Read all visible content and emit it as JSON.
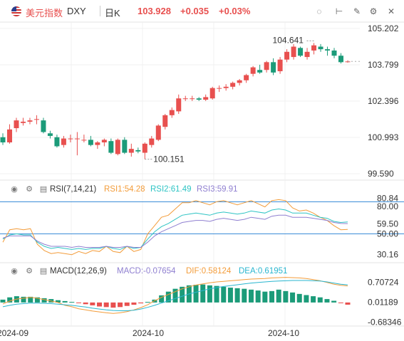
{
  "header": {
    "name": "美元指数",
    "code": "DXY",
    "period": "日K",
    "last": "103.928",
    "change": "+0.035",
    "change_pct": "+0.03%",
    "flag_icon": "us-flag-icon",
    "tools": [
      "eye-off-icon",
      "price-line-icon",
      "draw-icon",
      "settings-icon",
      "expand-icon",
      "close-icon"
    ]
  },
  "colors": {
    "up": "#e8504f",
    "down": "#1b9b79",
    "rsi1": "#f39c3a",
    "rsi2": "#2ec4c4",
    "rsi3": "#8f7fd0",
    "macd": "#8f7fd0",
    "dif": "#f39c3a",
    "dea": "#29b6cf",
    "level": "#3c8dd8"
  },
  "chart_data": [
    {
      "type": "candlestick",
      "price_axis": [
        "105.202",
        "103.799",
        "102.396",
        "100.993",
        "99.590"
      ],
      "ylim": [
        99.59,
        105.202
      ],
      "high_label": "104.641",
      "low_label": "100.151",
      "candles": [
        [
          101.0,
          101.15,
          100.7,
          100.8
        ],
        [
          100.8,
          101.5,
          100.75,
          101.3
        ],
        [
          101.35,
          101.75,
          101.2,
          101.65
        ],
        [
          101.55,
          101.75,
          101.45,
          101.6
        ],
        [
          101.6,
          101.75,
          101.5,
          101.65
        ],
        [
          101.7,
          101.85,
          101.5,
          101.7
        ],
        [
          101.65,
          101.75,
          101.15,
          101.2
        ],
        [
          101.15,
          101.25,
          100.95,
          101.05
        ],
        [
          101.0,
          101.1,
          100.6,
          100.65
        ],
        [
          100.7,
          101.05,
          100.6,
          100.95
        ],
        [
          100.95,
          101.1,
          100.8,
          100.95
        ],
        [
          100.95,
          101.2,
          100.3,
          100.95
        ],
        [
          100.9,
          101.1,
          100.8,
          100.9
        ],
        [
          100.9,
          101.05,
          100.65,
          100.7
        ],
        [
          100.7,
          100.85,
          100.55,
          100.8
        ],
        [
          100.8,
          100.95,
          100.65,
          100.9
        ],
        [
          100.85,
          100.95,
          100.35,
          100.4
        ],
        [
          100.35,
          100.95,
          100.3,
          100.9
        ],
        [
          100.9,
          101.0,
          100.35,
          100.4
        ],
        [
          100.4,
          100.75,
          100.25,
          100.55
        ],
        [
          100.5,
          100.6,
          100.38,
          100.45
        ],
        [
          100.4,
          100.8,
          100.15,
          100.75
        ],
        [
          100.7,
          101.05,
          100.6,
          100.95
        ],
        [
          100.9,
          101.5,
          100.85,
          101.45
        ],
        [
          101.4,
          101.9,
          101.3,
          101.85
        ],
        [
          101.85,
          102.15,
          101.75,
          102.05
        ],
        [
          102.0,
          102.65,
          101.9,
          102.5
        ],
        [
          102.5,
          102.6,
          102.4,
          102.5
        ],
        [
          102.5,
          102.6,
          102.4,
          102.5
        ],
        [
          102.5,
          102.55,
          102.4,
          102.45
        ],
        [
          102.45,
          102.65,
          102.4,
          102.55
        ],
        [
          102.5,
          102.95,
          102.45,
          102.9
        ],
        [
          102.9,
          103.0,
          102.75,
          102.9
        ],
        [
          102.9,
          103.05,
          102.8,
          102.95
        ],
        [
          102.95,
          103.15,
          102.85,
          103.1
        ],
        [
          103.1,
          103.25,
          103.0,
          103.2
        ],
        [
          103.2,
          103.45,
          103.1,
          103.4
        ],
        [
          103.45,
          103.75,
          103.35,
          103.7
        ],
        [
          103.6,
          103.8,
          103.45,
          103.5
        ],
        [
          103.6,
          103.95,
          103.5,
          103.9
        ],
        [
          103.9,
          104.05,
          103.4,
          103.5
        ],
        [
          103.55,
          104.1,
          103.45,
          104.0
        ],
        [
          104.0,
          104.4,
          103.9,
          104.3
        ],
        [
          104.1,
          104.6,
          104.0,
          104.5
        ],
        [
          104.45,
          104.5,
          104.1,
          104.15
        ],
        [
          104.1,
          104.45,
          104.0,
          104.3
        ],
        [
          104.35,
          104.641,
          104.2,
          104.55
        ],
        [
          104.5,
          104.6,
          104.3,
          104.4
        ],
        [
          104.4,
          104.5,
          104.15,
          104.35
        ],
        [
          104.35,
          104.45,
          104.05,
          104.15
        ],
        [
          104.15,
          104.25,
          103.85,
          103.9
        ],
        [
          103.9,
          103.97,
          103.88,
          103.928
        ]
      ]
    },
    {
      "type": "line",
      "name": "RSI(7,14,21)",
      "labels": {
        "title": "RSI(7,14,21)",
        "rsi1": "RSI1:54.28",
        "rsi2": "RSI2:61.49",
        "rsi3": "RSI3:59.91"
      },
      "axis": [
        "80.84",
        "80.00",
        "59.50",
        "50.00",
        "30.16"
      ],
      "ylim": [
        25,
        86
      ],
      "levels": [
        80.84,
        50.0
      ],
      "series": [
        {
          "name": "RSI1",
          "values": [
            42,
            54,
            55,
            54,
            55,
            40,
            34,
            31,
            32,
            31,
            30,
            33,
            31,
            34,
            33,
            38,
            33,
            32,
            38,
            33,
            35,
            50,
            58,
            66,
            68,
            74,
            80,
            80,
            82,
            80,
            78,
            81,
            82,
            80,
            78,
            80,
            82,
            79,
            76,
            82,
            83,
            82,
            75,
            72,
            73,
            70,
            66,
            63,
            58,
            54,
            54.28
          ]
        },
        {
          "name": "RSI2",
          "values": [
            45,
            49,
            50,
            49,
            49,
            42,
            38,
            36,
            37,
            36,
            35,
            36,
            35,
            36,
            36,
            38,
            36,
            35,
            38,
            36,
            37,
            45,
            52,
            57,
            60,
            64,
            68,
            69,
            70,
            69,
            68,
            70,
            71,
            70,
            69,
            70,
            72,
            71,
            70,
            73,
            74,
            73,
            70,
            70,
            70,
            68,
            66,
            65,
            62,
            61,
            61.49
          ]
        },
        {
          "name": "RSI3",
          "values": [
            46,
            48,
            48,
            48,
            48,
            43,
            40,
            38,
            38,
            38,
            37,
            38,
            37,
            37,
            37,
            38,
            37,
            37,
            38,
            37,
            37,
            42,
            48,
            52,
            55,
            58,
            61,
            62,
            63,
            63,
            62,
            64,
            65,
            64,
            63,
            64,
            66,
            65,
            64,
            67,
            68,
            68,
            66,
            66,
            66,
            65,
            64,
            63,
            61,
            60,
            59.91
          ]
        }
      ]
    },
    {
      "type": "bar+line",
      "name": "MACD(12,26,9)",
      "labels": {
        "title": "MACD(12,26,9)",
        "macd": "MACD:-0.07654",
        "dif": "DIF:0.58124",
        "dea": "DEA:0.61951"
      },
      "axis": [
        "0.70724",
        "0.01189",
        "-0.68346"
      ],
      "ylim": [
        -0.75,
        0.92
      ],
      "histogram": [
        0.1,
        0.18,
        0.22,
        0.2,
        0.2,
        0.18,
        0.15,
        0.12,
        0.08,
        0.05,
        0.02,
        -0.02,
        -0.06,
        -0.1,
        -0.14,
        -0.16,
        -0.18,
        -0.16,
        -0.12,
        -0.08,
        -0.03,
        0.02,
        0.1,
        0.25,
        0.38,
        0.48,
        0.55,
        0.6,
        0.62,
        0.63,
        0.6,
        0.58,
        0.55,
        0.52,
        0.5,
        0.48,
        0.45,
        0.42,
        0.38,
        0.4,
        0.45,
        0.4,
        0.35,
        0.3,
        0.26,
        0.22,
        0.18,
        0.12,
        0.06,
        -0.01,
        -0.07654
      ],
      "series": [
        {
          "name": "DIF",
          "values": [
            -0.05,
            0.05,
            0.12,
            0.15,
            0.18,
            0.15,
            0.1,
            0.05,
            0.0,
            -0.1,
            -0.15,
            -0.22,
            -0.26,
            -0.3,
            -0.33,
            -0.36,
            -0.38,
            -0.36,
            -0.32,
            -0.26,
            -0.18,
            -0.08,
            0.06,
            0.18,
            0.28,
            0.38,
            0.48,
            0.55,
            0.61,
            0.65,
            0.69,
            0.72,
            0.74,
            0.76,
            0.78,
            0.8,
            0.82,
            0.83,
            0.84,
            0.86,
            0.87,
            0.88,
            0.87,
            0.86,
            0.84,
            0.8,
            0.76,
            0.7,
            0.64,
            0.6,
            0.58124
          ]
        },
        {
          "name": "DEA",
          "values": [
            -0.15,
            -0.1,
            -0.06,
            -0.04,
            -0.02,
            -0.02,
            -0.03,
            -0.04,
            -0.06,
            -0.08,
            -0.1,
            -0.13,
            -0.16,
            -0.2,
            -0.23,
            -0.26,
            -0.28,
            -0.29,
            -0.29,
            -0.27,
            -0.23,
            -0.17,
            -0.1,
            -0.02,
            0.06,
            0.14,
            0.22,
            0.3,
            0.36,
            0.42,
            0.48,
            0.52,
            0.56,
            0.59,
            0.62,
            0.65,
            0.68,
            0.7,
            0.72,
            0.74,
            0.75,
            0.76,
            0.77,
            0.77,
            0.77,
            0.76,
            0.75,
            0.72,
            0.68,
            0.64,
            0.61951
          ]
        }
      ]
    }
  ],
  "time_axis": [
    "2024-09",
    "2024-10",
    "2024-10"
  ]
}
